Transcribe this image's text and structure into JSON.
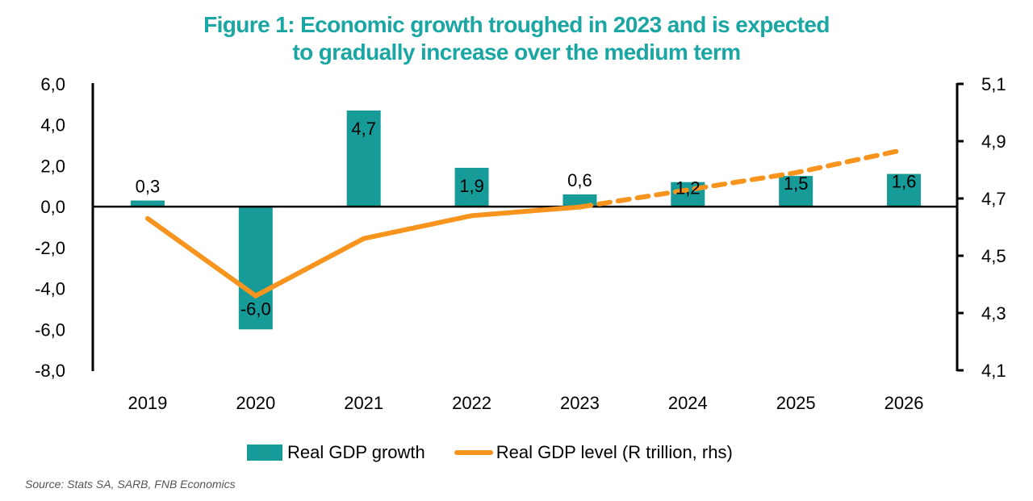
{
  "title": {
    "line1": "Figure 1: Economic growth troughed in 2023 and is expected",
    "line2": "to gradually increase over the medium term"
  },
  "source": "Source: Stats SA, SARB, FNB Economics",
  "colors": {
    "bar": "#169b98",
    "line": "#f7941d",
    "title": "#1aa6a3",
    "axis": "#000000"
  },
  "legend": {
    "bar_label": "Real GDP growth",
    "line_label": "Real GDP level (R trillion, rhs)",
    "position": "bottom"
  },
  "chart_data": {
    "type": "bar",
    "title": "Figure 1: Economic growth troughed in 2023 and is expected to gradually increase over the medium term",
    "xlabel": "",
    "ylabel": "",
    "categories": [
      "2019",
      "2020",
      "2021",
      "2022",
      "2023",
      "2024",
      "2025",
      "2026"
    ],
    "series": [
      {
        "name": "Real GDP growth",
        "type": "bar",
        "axis": "left",
        "values": [
          0.3,
          -6.0,
          4.7,
          1.9,
          0.6,
          1.2,
          1.5,
          1.6
        ],
        "labels": [
          "0,3",
          "-6,0",
          "4,7",
          "1,9",
          "0,6",
          "1,2",
          "1,5",
          "1,6"
        ]
      },
      {
        "name": "Real GDP level (R trillion, rhs)",
        "type": "line",
        "axis": "right",
        "values": [
          4.63,
          4.36,
          4.56,
          4.64,
          4.67,
          4.73,
          4.79,
          4.87
        ],
        "solid_until_index": 4,
        "dashed_from_index": 4,
        "note": "Solid for actuals, dashed for forecast"
      }
    ],
    "y_left": {
      "ylim": [
        -8.0,
        6.0
      ],
      "ticks": [
        6.0,
        4.0,
        2.0,
        0.0,
        -2.0,
        -4.0,
        -6.0,
        -8.0
      ],
      "tick_labels": [
        "6,0",
        "4,0",
        "2,0",
        "0,0",
        "-2,0",
        "-4,0",
        "-6,0",
        "-8,0"
      ]
    },
    "y_right": {
      "ylim": [
        4.1,
        5.1
      ],
      "ticks": [
        5.1,
        4.9,
        4.7,
        4.5,
        4.3,
        4.1
      ],
      "tick_labels": [
        "5,1",
        "4,9",
        "4,7",
        "4,5",
        "4,3",
        "4,1"
      ]
    },
    "grid": false,
    "legend_position": "bottom"
  }
}
